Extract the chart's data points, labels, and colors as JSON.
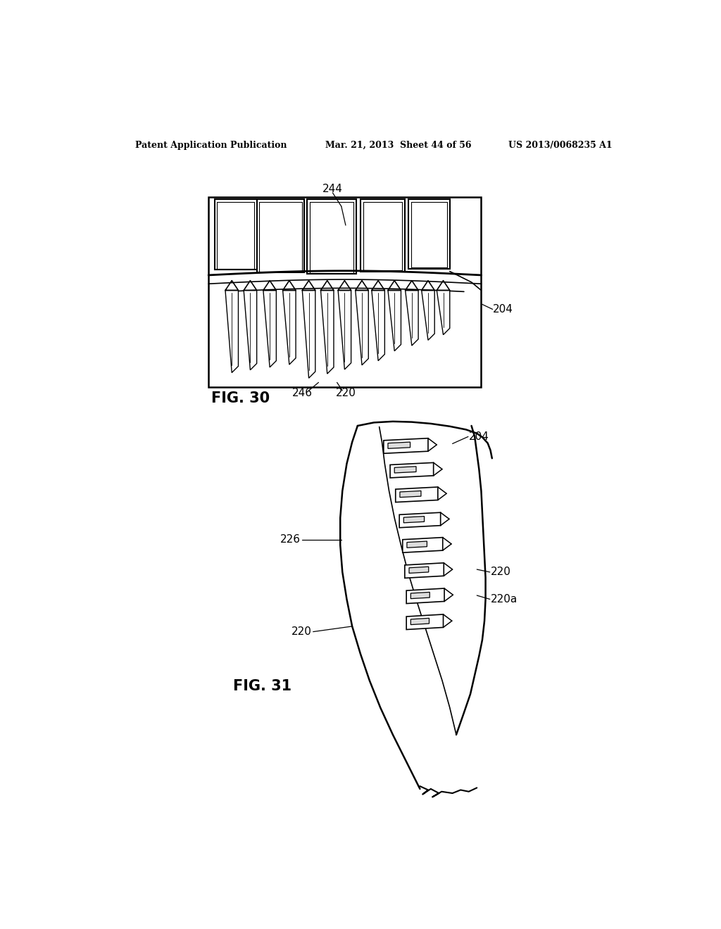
{
  "background_color": "#ffffff",
  "header_left": "Patent Application Publication",
  "header_center": "Mar. 21, 2013  Sheet 44 of 56",
  "header_right": "US 2013/0068235 A1"
}
